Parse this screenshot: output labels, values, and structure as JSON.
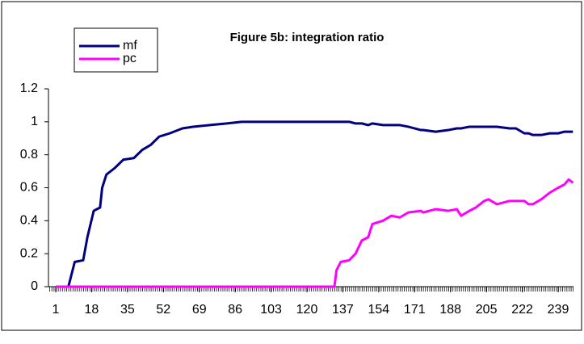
{
  "chart_data": {
    "type": "line",
    "title": "Figure 5b: integration ratio",
    "x": [
      1,
      7,
      8,
      10,
      14,
      16,
      19,
      22,
      23,
      25,
      29,
      33,
      38,
      42,
      46,
      50,
      55,
      61,
      66,
      74,
      82,
      89,
      133,
      134,
      136,
      140,
      143,
      146,
      149,
      151,
      156,
      160,
      164,
      168,
      174,
      175,
      181,
      187,
      191,
      193,
      197,
      200,
      204,
      206,
      210,
      216,
      219,
      223,
      225,
      227,
      231,
      235,
      239,
      242,
      244,
      246
    ],
    "series": [
      {
        "name": "mf",
        "color": "#000080",
        "values": [
          0,
          0,
          0.05,
          0.15,
          0.16,
          0.3,
          0.46,
          0.48,
          0.6,
          0.68,
          0.72,
          0.77,
          0.78,
          0.83,
          0.86,
          0.91,
          0.93,
          0.96,
          0.97,
          0.98,
          0.99,
          1,
          1,
          1,
          1,
          1,
          0.99,
          0.99,
          0.98,
          0.99,
          0.98,
          0.98,
          0.98,
          0.97,
          0.95,
          0.95,
          0.94,
          0.95,
          0.96,
          0.96,
          0.97,
          0.97,
          0.97,
          0.97,
          0.97,
          0.96,
          0.96,
          0.93,
          0.93,
          0.92,
          0.92,
          0.93,
          0.93,
          0.94,
          0.94,
          0.94
        ]
      },
      {
        "name": "pc",
        "color": "#ff00ff",
        "values": [
          0,
          0,
          0,
          0,
          0,
          0,
          0,
          0,
          0,
          0,
          0,
          0,
          0,
          0,
          0,
          0,
          0,
          0,
          0,
          0,
          0,
          0,
          0,
          0.1,
          0.15,
          0.16,
          0.2,
          0.28,
          0.3,
          0.38,
          0.4,
          0.43,
          0.42,
          0.45,
          0.46,
          0.45,
          0.47,
          0.46,
          0.47,
          0.43,
          0.46,
          0.48,
          0.52,
          0.53,
          0.5,
          0.52,
          0.52,
          0.52,
          0.5,
          0.5,
          0.53,
          0.57,
          0.6,
          0.62,
          0.65,
          0.63
        ]
      }
    ],
    "xlim": [
      1,
      246
    ],
    "xticks": [
      1,
      18,
      35,
      52,
      69,
      86,
      103,
      120,
      137,
      154,
      171,
      188,
      205,
      222,
      239
    ],
    "ylim": [
      0,
      1.2
    ],
    "yticks": [
      0,
      0.2,
      0.4,
      0.6,
      0.8,
      1,
      1.2
    ],
    "grid": false,
    "legend": "upper left"
  }
}
